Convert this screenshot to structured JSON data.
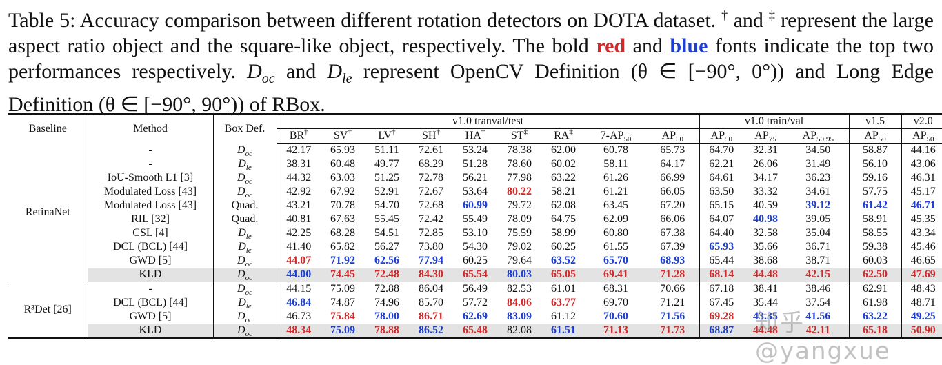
{
  "caption": {
    "p1": "Table 5: Accuracy comparison between different rotation detectors on DOTA dataset.",
    "dagger": "†",
    "and1": "and",
    "ddagger": "‡",
    "p2": "represent the large aspect ratio object and the square-like object, respectively. The bold",
    "red_word": "red",
    "and2": "and",
    "blue_word": "blue",
    "p3": "fonts indicate the top two performances respectively.",
    "doc_sub": "oc",
    "and3": "and",
    "dle_sub": "le",
    "p4": "represent OpenCV Definition",
    "opencv_range": "(θ ∈ [−90°, 0°))",
    "p5": "and Long Edge Definition",
    "le_range": "(θ ∈ [−90°, 90°))",
    "p6": "of RBox."
  },
  "header": {
    "baseline": "Baseline",
    "method": "Method",
    "boxdef": "Box Def.",
    "group_test": "v1.0 tranval/test",
    "group_trainval": "v1.0 train/val",
    "group_v15": "v1.5",
    "group_v20": "v2.0",
    "cols": [
      "BR",
      "SV",
      "LV",
      "SH",
      "HA",
      "ST",
      "RA",
      "7-AP",
      "AP",
      "AP",
      "AP",
      "AP",
      "AP",
      "AP"
    ],
    "col_marks": [
      "†",
      "†",
      "†",
      "†",
      "†",
      "‡",
      "‡",
      "",
      "",
      "",
      "",
      "",
      "",
      ""
    ],
    "col_subs": [
      "",
      "",
      "",
      "",
      "",
      "",
      "",
      "50",
      "50",
      "50",
      "75",
      "50:95",
      "50",
      "50"
    ]
  },
  "groups": [
    {
      "baseline": "RetinaNet",
      "rows": [
        {
          "method": "-",
          "box": "D",
          "box_sub": "oc",
          "vals": [
            "42.17",
            "65.93",
            "51.11",
            "72.61",
            "53.24",
            "78.38",
            "62.00",
            "60.78",
            "65.73",
            "64.70",
            "32.31",
            "34.50",
            "58.87",
            "44.16"
          ],
          "marks": [
            "",
            "",
            "",
            "",
            "",
            "",
            "",
            "",
            "",
            "",
            "",
            "",
            "",
            ""
          ]
        },
        {
          "method": "-",
          "box": "D",
          "box_sub": "le",
          "vals": [
            "38.31",
            "60.48",
            "49.77",
            "68.29",
            "51.28",
            "78.60",
            "60.02",
            "58.11",
            "64.17",
            "62.21",
            "26.06",
            "31.49",
            "56.10",
            "43.06"
          ],
          "marks": [
            "",
            "",
            "",
            "",
            "",
            "",
            "",
            "",
            "",
            "",
            "",
            "",
            "",
            ""
          ]
        },
        {
          "method": "IoU-Smooth L1 [3]",
          "box": "D",
          "box_sub": "oc",
          "vals": [
            "44.32",
            "63.03",
            "51.25",
            "72.78",
            "56.21",
            "77.98",
            "63.22",
            "61.26",
            "66.99",
            "64.61",
            "34.17",
            "36.23",
            "59.16",
            "46.31"
          ],
          "marks": [
            "",
            "",
            "",
            "",
            "",
            "",
            "",
            "",
            "",
            "",
            "",
            "",
            "",
            ""
          ]
        },
        {
          "method": "Modulated Loss [43]",
          "box": "D",
          "box_sub": "oc",
          "vals": [
            "42.92",
            "67.92",
            "52.91",
            "72.67",
            "53.64",
            "80.22",
            "58.21",
            "61.21",
            "66.05",
            "63.50",
            "33.32",
            "34.61",
            "57.75",
            "45.17"
          ],
          "marks": [
            "",
            "",
            "",
            "",
            "",
            "r",
            "",
            "",
            "",
            "",
            "",
            "",
            "",
            ""
          ]
        },
        {
          "method": "Modulated Loss [43]",
          "box": "Quad.",
          "box_sub": "",
          "vals": [
            "43.21",
            "70.78",
            "54.70",
            "72.68",
            "60.99",
            "79.72",
            "62.08",
            "63.45",
            "67.20",
            "65.15",
            "40.59",
            "39.12",
            "61.42",
            "46.71"
          ],
          "marks": [
            "",
            "",
            "",
            "",
            "b",
            "",
            "",
            "",
            "",
            "",
            "",
            "b",
            "b",
            "b"
          ]
        },
        {
          "method": "RIL [32]",
          "box": "Quad.",
          "box_sub": "",
          "vals": [
            "40.81",
            "67.63",
            "55.45",
            "72.42",
            "55.49",
            "78.09",
            "64.75",
            "62.09",
            "66.06",
            "64.07",
            "40.98",
            "39.05",
            "58.91",
            "45.35"
          ],
          "marks": [
            "",
            "",
            "",
            "",
            "",
            "",
            "",
            "",
            "",
            "",
            "b",
            "",
            "",
            ""
          ]
        },
        {
          "method": "CSL [4]",
          "box": "D",
          "box_sub": "le",
          "vals": [
            "42.25",
            "68.28",
            "54.51",
            "72.85",
            "53.10",
            "75.59",
            "58.99",
            "60.80",
            "67.38",
            "64.40",
            "32.58",
            "35.04",
            "58.55",
            "43.34"
          ],
          "marks": [
            "",
            "",
            "",
            "",
            "",
            "",
            "",
            "",
            "",
            "",
            "",
            "",
            "",
            ""
          ]
        },
        {
          "method": "DCL (BCL) [44]",
          "box": "D",
          "box_sub": "le",
          "vals": [
            "41.40",
            "65.82",
            "56.27",
            "73.80",
            "54.30",
            "79.02",
            "60.25",
            "61.55",
            "67.39",
            "65.93",
            "35.66",
            "36.71",
            "59.38",
            "45.46"
          ],
          "marks": [
            "",
            "",
            "",
            "",
            "",
            "",
            "",
            "",
            "",
            "b",
            "",
            "",
            "",
            ""
          ]
        },
        {
          "method": "GWD [5]",
          "box": "D",
          "box_sub": "oc",
          "vals": [
            "44.07",
            "71.92",
            "62.56",
            "77.94",
            "60.25",
            "79.64",
            "63.52",
            "65.70",
            "68.93",
            "65.44",
            "38.68",
            "38.71",
            "60.03",
            "46.65"
          ],
          "marks": [
            "r",
            "b",
            "b",
            "b",
            "",
            "",
            "b",
            "b",
            "b",
            "",
            "",
            "",
            "",
            ""
          ]
        },
        {
          "method": "KLD",
          "box": "D",
          "box_sub": "oc",
          "kld": true,
          "vals": [
            "44.00",
            "74.45",
            "72.48",
            "84.30",
            "65.54",
            "80.03",
            "65.05",
            "69.41",
            "71.28",
            "68.14",
            "44.48",
            "42.15",
            "62.50",
            "47.69"
          ],
          "marks": [
            "b",
            "r",
            "r",
            "r",
            "r",
            "b",
            "r",
            "r",
            "r",
            "r",
            "r",
            "r",
            "r",
            "r"
          ]
        }
      ]
    },
    {
      "baseline": "R³Det [26]",
      "rows": [
        {
          "method": "-",
          "box": "D",
          "box_sub": "oc",
          "vals": [
            "44.15",
            "75.09",
            "72.88",
            "86.04",
            "56.49",
            "82.53",
            "61.01",
            "68.31",
            "70.66",
            "67.18",
            "38.41",
            "38.46",
            "62.91",
            "48.43"
          ],
          "marks": [
            "",
            "",
            "",
            "",
            "",
            "",
            "",
            "",
            "",
            "",
            "",
            "",
            "",
            ""
          ]
        },
        {
          "method": "DCL (BCL) [44]",
          "box": "D",
          "box_sub": "le",
          "vals": [
            "46.84",
            "74.87",
            "74.96",
            "85.70",
            "57.72",
            "84.06",
            "63.77",
            "69.70",
            "71.21",
            "67.45",
            "35.44",
            "37.54",
            "61.98",
            "48.71"
          ],
          "marks": [
            "b",
            "",
            "",
            "",
            "",
            "r",
            "r",
            "",
            "",
            "",
            "",
            "",
            "",
            ""
          ]
        },
        {
          "method": "GWD [5]",
          "box": "D",
          "box_sub": "oc",
          "vals": [
            "46.73",
            "75.84",
            "78.00",
            "86.71",
            "62.69",
            "83.09",
            "61.12",
            "70.60",
            "71.56",
            "69.28",
            "43.35",
            "41.56",
            "63.22",
            "49.25"
          ],
          "marks": [
            "",
            "r",
            "b",
            "r",
            "b",
            "b",
            "",
            "b",
            "b",
            "r",
            "b",
            "b",
            "b",
            "b"
          ]
        },
        {
          "method": "KLD",
          "box": "D",
          "box_sub": "oc",
          "kld": true,
          "vals": [
            "48.34",
            "75.09",
            "78.88",
            "86.52",
            "65.48",
            "82.08",
            "61.51",
            "71.13",
            "71.73",
            "68.87",
            "44.48",
            "42.11",
            "65.18",
            "50.90"
          ],
          "marks": [
            "r",
            "b",
            "r",
            "b",
            "r",
            "",
            "b",
            "r",
            "r",
            "b",
            "r",
            "r",
            "r",
            "r"
          ]
        }
      ]
    }
  ],
  "watermark": "知乎 @yangxue"
}
